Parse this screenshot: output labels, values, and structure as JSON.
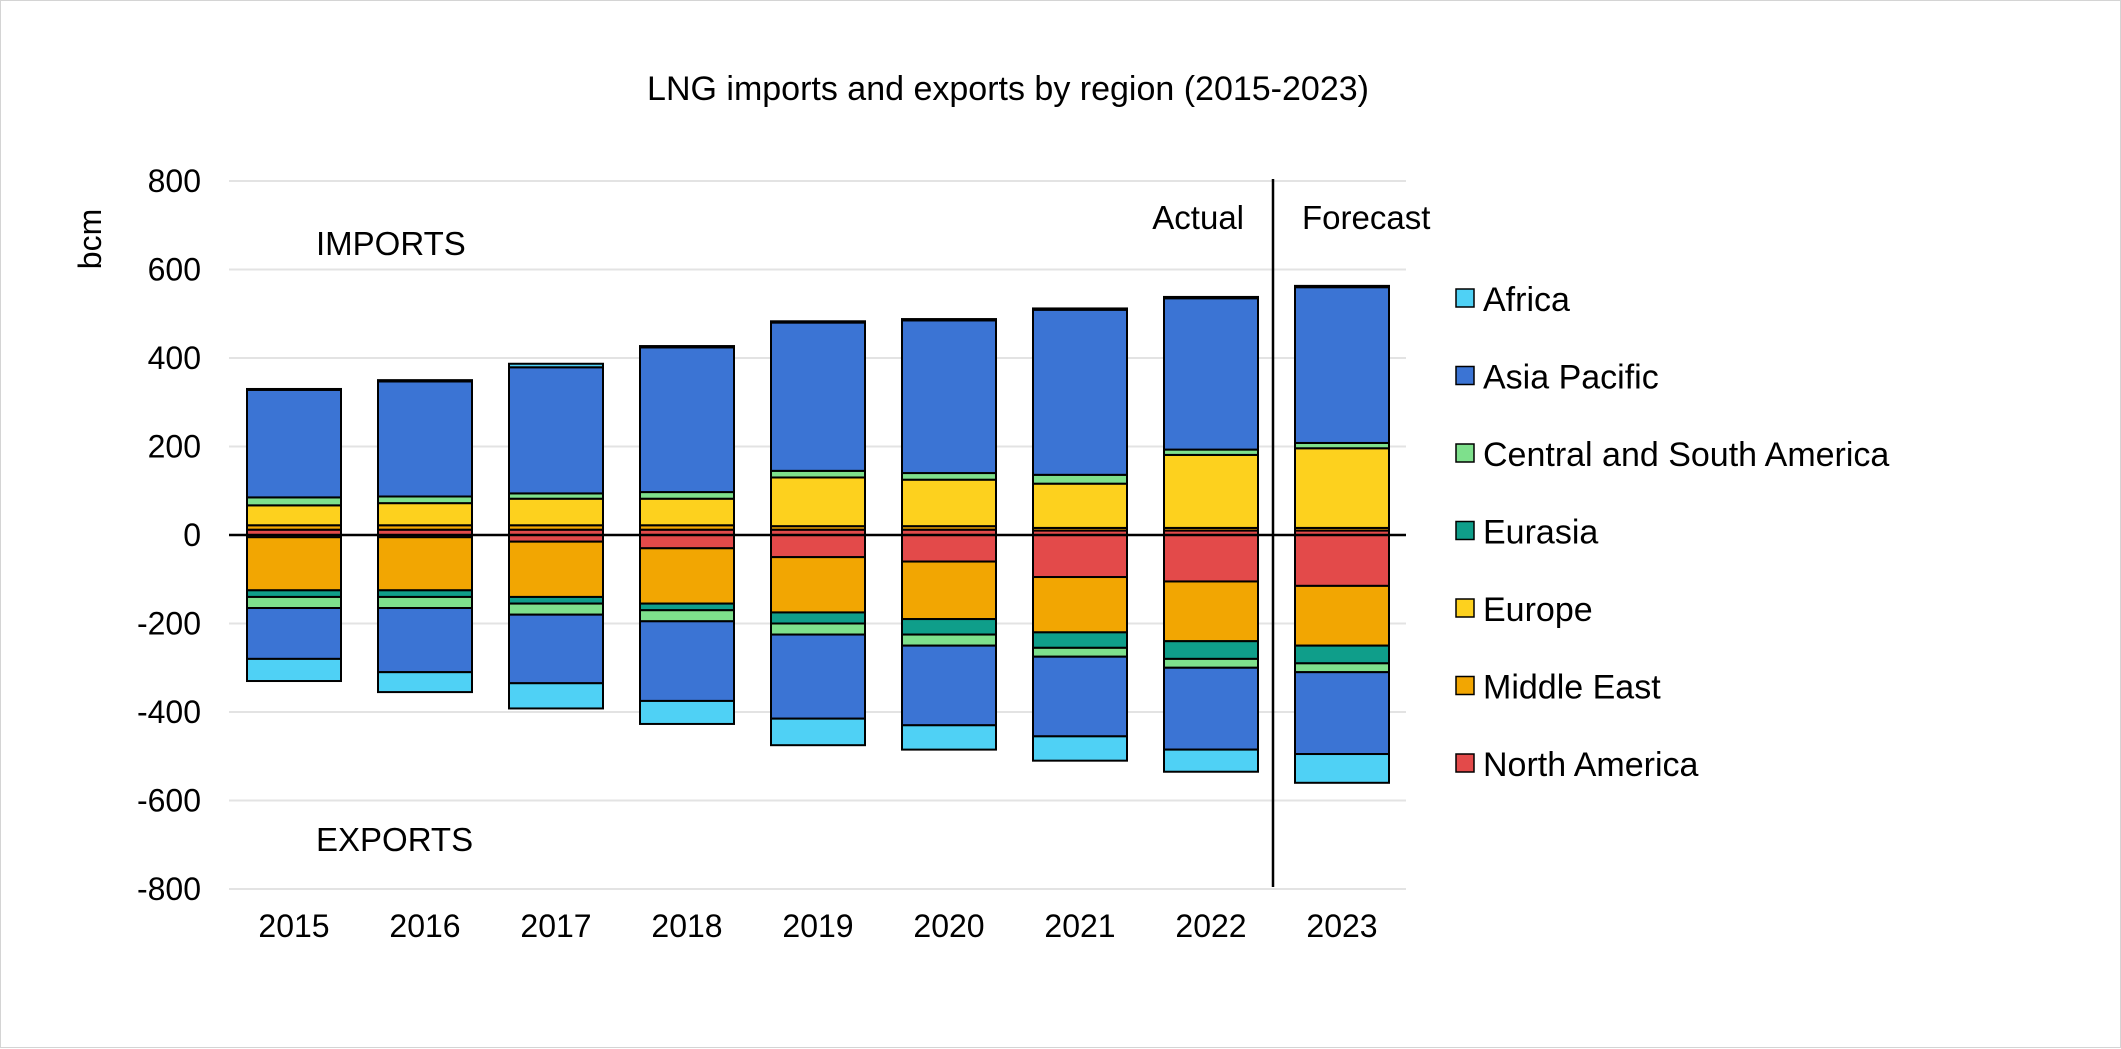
{
  "chart_data": {
    "type": "bar",
    "stacked": true,
    "title": "LNG imports and exports by region (2015-2023)",
    "ylabel": "bcm",
    "xlabel": "",
    "ylim": [
      -800,
      800
    ],
    "yticks": [
      800,
      600,
      400,
      200,
      0,
      -200,
      -400,
      -600,
      -800
    ],
    "grid": true,
    "legend_position": "right",
    "categories": [
      "2015",
      "2016",
      "2017",
      "2018",
      "2019",
      "2020",
      "2021",
      "2022",
      "2023"
    ],
    "annotations": {
      "imports": "IMPORTS",
      "exports": "EXPORTS",
      "actual": "Actual",
      "forecast": "Forecast"
    },
    "imports": [
      {
        "name": "North America",
        "color": "#e34a4a",
        "values": [
          12,
          12,
          12,
          12,
          12,
          12,
          10,
          10,
          10
        ]
      },
      {
        "name": "Middle East",
        "color": "#f2a602",
        "values": [
          10,
          10,
          10,
          10,
          8,
          8,
          6,
          6,
          6
        ]
      },
      {
        "name": "Europe",
        "color": "#fdd11e",
        "values": [
          45,
          50,
          60,
          60,
          110,
          105,
          100,
          165,
          180
        ]
      },
      {
        "name": "Eurasia",
        "color": "#0f9e8a",
        "values": [
          0,
          0,
          0,
          0,
          0,
          0,
          0,
          0,
          0
        ]
      },
      {
        "name": "Central and South America",
        "color": "#7ee08c",
        "values": [
          18,
          15,
          12,
          15,
          15,
          15,
          20,
          12,
          12
        ]
      },
      {
        "name": "Asia Pacific",
        "color": "#3b74d4",
        "values": [
          243,
          260,
          285,
          327,
          335,
          345,
          373,
          342,
          352
        ]
      },
      {
        "name": "Africa",
        "color": "#4fd1f5",
        "values": [
          2,
          3,
          8,
          3,
          3,
          3,
          3,
          3,
          3
        ]
      }
    ],
    "exports": [
      {
        "name": "North America",
        "color": "#e34a4a",
        "values": [
          -5,
          -5,
          -15,
          -30,
          -50,
          -60,
          -95,
          -105,
          -115
        ]
      },
      {
        "name": "Middle East",
        "color": "#f2a602",
        "values": [
          -120,
          -120,
          -125,
          -125,
          -125,
          -130,
          -125,
          -135,
          -135
        ]
      },
      {
        "name": "Eurasia",
        "color": "#0f9e8a",
        "values": [
          -15,
          -15,
          -15,
          -15,
          -25,
          -35,
          -35,
          -40,
          -40
        ]
      },
      {
        "name": "Central and South America",
        "color": "#7ee08c",
        "values": [
          -25,
          -25,
          -25,
          -25,
          -25,
          -25,
          -20,
          -20,
          -20
        ]
      },
      {
        "name": "Asia Pacific",
        "color": "#3b74d4",
        "values": [
          -115,
          -145,
          -155,
          -180,
          -190,
          -180,
          -180,
          -185,
          -185
        ]
      },
      {
        "name": "Africa",
        "color": "#4fd1f5",
        "values": [
          -50,
          -45,
          -57,
          -52,
          -60,
          -55,
          -55,
          -50,
          -65
        ]
      }
    ],
    "legend": [
      {
        "name": "Africa",
        "color": "#4fd1f5"
      },
      {
        "name": "Asia Pacific",
        "color": "#3b74d4"
      },
      {
        "name": "Central and South America",
        "color": "#7ee08c"
      },
      {
        "name": "Eurasia",
        "color": "#0f9e8a"
      },
      {
        "name": "Europe",
        "color": "#fdd11e"
      },
      {
        "name": "Middle East",
        "color": "#f2a602"
      },
      {
        "name": "North America",
        "color": "#e34a4a"
      }
    ]
  }
}
